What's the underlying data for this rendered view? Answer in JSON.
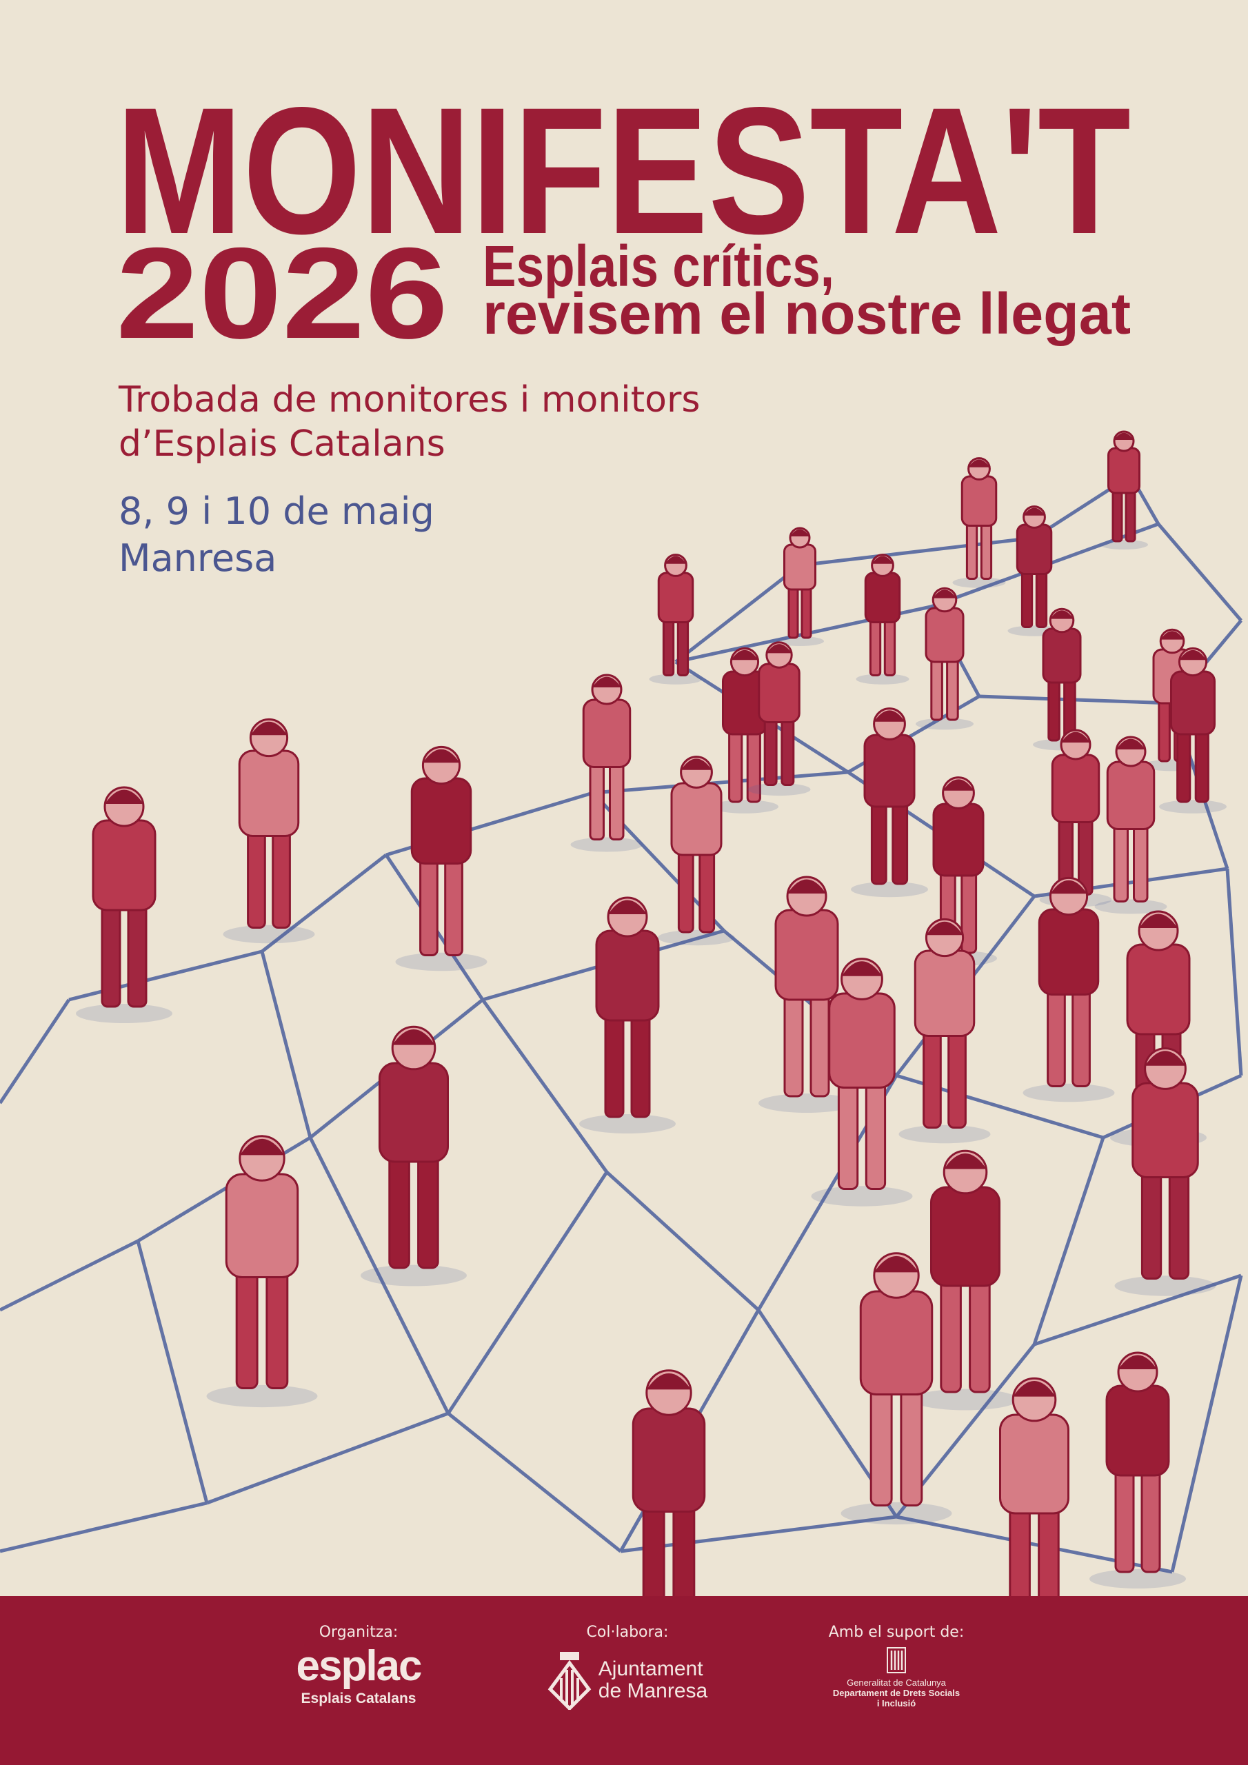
{
  "title": "MONIFESTA'T",
  "year": "2026",
  "subtitle": {
    "line1": "Esplais crítics,",
    "line2": "revisem el nostre llegat"
  },
  "event": {
    "line1": "Trobada de monitores i monitors",
    "line2": "d’Esplais Catalans"
  },
  "dates": "8, 9 i 10 de maig",
  "place": "Manresa",
  "colors": {
    "background": "#ece4d4",
    "accent_red": "#9b1d36",
    "accent_blue": "#4b5690",
    "footer": "#951833"
  },
  "footer": {
    "organizer": {
      "label": "Organitza:",
      "logo": "esplac",
      "name": "Esplais Catalans"
    },
    "collaborator": {
      "label": "Col·labora:",
      "line1": "Ajuntament",
      "line2": "de Manresa",
      "icon": "manresa-coat-of-arms-icon"
    },
    "support": {
      "label": "Amb el suport de:",
      "line1": "Generalitat de Catalunya",
      "line2": "Departament de Drets Socials",
      "line3": "i Inclusió",
      "icon": "generalitat-seal-icon"
    }
  }
}
